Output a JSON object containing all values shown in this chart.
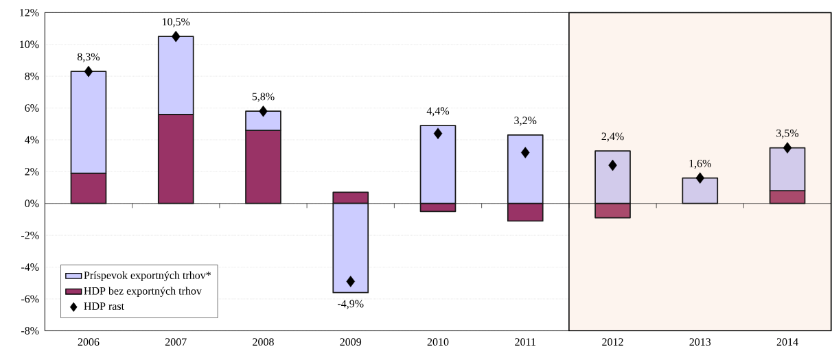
{
  "chart_data": {
    "type": "bar",
    "stacked": true,
    "categories": [
      "2006",
      "2007",
      "2008",
      "2009",
      "2010",
      "2011",
      "2012",
      "2013",
      "2014"
    ],
    "series": [
      {
        "name": "HDP bez exportných trhov",
        "colors": [
          "#993366",
          "#993366",
          "#993366",
          "#993366",
          "#993366",
          "#993366",
          "#a94a6c",
          "#a94a6c",
          "#a94a6c"
        ],
        "values": [
          1.9,
          5.6,
          4.6,
          0.7,
          -0.5,
          -1.1,
          -0.9,
          0,
          0.8
        ]
      },
      {
        "name": "Príspevok exportných trhov*",
        "colors": [
          "#ccccff",
          "#ccccff",
          "#ccccff",
          "#ccccff",
          "#ccccff",
          "#ccccff",
          "#d2cbeb",
          "#d2cbeb",
          "#d2cbeb"
        ],
        "values": [
          6.4,
          4.9,
          1.2,
          -5.6,
          4.9,
          4.3,
          3.3,
          1.6,
          2.7
        ]
      },
      {
        "name": "HDP rast",
        "type": "scatter",
        "marker": "diamond",
        "color": "#000000",
        "values": [
          8.3,
          10.5,
          5.8,
          -4.9,
          4.4,
          3.2,
          2.4,
          1.6,
          3.5
        ],
        "value_labels": [
          "8,3%",
          "10,5%",
          "5,8%",
          "-4,9%",
          "4,4%",
          "3,2%",
          "2,4%",
          "1,6%",
          "3,5%"
        ]
      }
    ],
    "ylim": [
      -8,
      12
    ],
    "yticks": [
      {
        "value": -8,
        "label": "-8%"
      },
      {
        "value": -6,
        "label": "-6%"
      },
      {
        "value": -4,
        "label": "-4%"
      },
      {
        "value": -2,
        "label": "-2%"
      },
      {
        "value": 0,
        "label": "0%"
      },
      {
        "value": 2,
        "label": "2%"
      },
      {
        "value": 4,
        "label": "4%"
      },
      {
        "value": 6,
        "label": "6%"
      },
      {
        "value": 8,
        "label": "8%"
      },
      {
        "value": 10,
        "label": "10%"
      },
      {
        "value": 12,
        "label": "12%"
      }
    ],
    "bands": [
      {
        "axis": "x",
        "from": "2012",
        "to": "2014",
        "color": "#fdf4ee"
      }
    ],
    "grid": "y",
    "legend": "bottom left"
  }
}
